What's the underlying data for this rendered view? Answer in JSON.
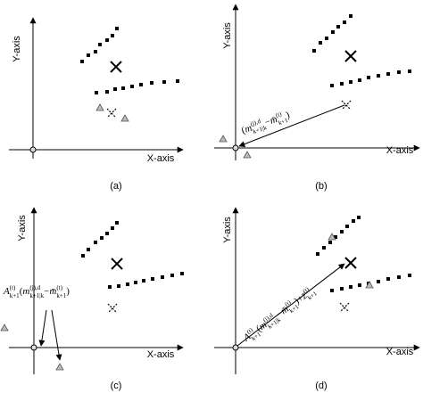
{
  "panels": [
    {
      "label": "(a)",
      "x_axis": "X-axis",
      "y_axis": "Y-axis"
    },
    {
      "label": "(b)",
      "x_axis": "X-axis",
      "y_axis": "Y-axis",
      "annotation": [
        "(",
        "m",
        "(j),d",
        "k+1|k",
        "−",
        "m̄",
        "(t)",
        "k+1",
        ")"
      ]
    },
    {
      "label": "(c)",
      "x_axis": "X-axis",
      "y_axis": "Y-axis",
      "annotation": [
        "A",
        "(t)",
        "k+1",
        "(",
        "m",
        "(j),d",
        "k+1|k",
        "−",
        "m̄",
        "(t)",
        "k+1",
        ")"
      ]
    },
    {
      "label": "(d)",
      "x_axis": "X-axis",
      "y_axis": "Y-axis",
      "annotation": [
        "A",
        "(t)",
        "k+1",
        "(",
        "m",
        "(j),d",
        "k+1|k",
        "−",
        "m̄",
        "(t)",
        "k+1",
        ")",
        "+",
        "z̄",
        "(t)",
        "k+1"
      ]
    }
  ]
}
